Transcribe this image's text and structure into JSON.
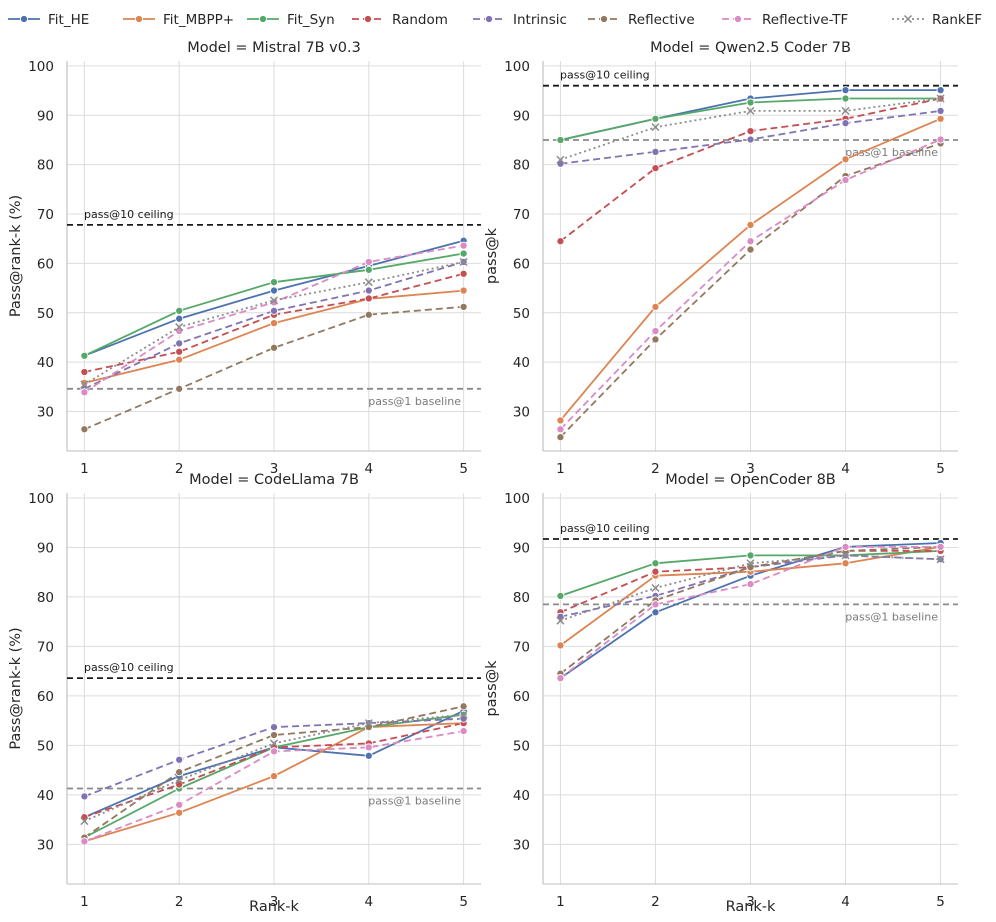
{
  "legend": {
    "position": "top",
    "items": [
      {
        "label": "Fit_HE",
        "color": "#4c72b0",
        "dash": "solid",
        "marker": "circle"
      },
      {
        "label": "Fit_MBPP+",
        "color": "#dd8452",
        "dash": "solid",
        "marker": "circle"
      },
      {
        "label": "Fit_Syn",
        "color": "#55a868",
        "dash": "solid",
        "marker": "circle"
      },
      {
        "label": "Random",
        "color": "#c44e52",
        "dash": "dashed",
        "marker": "circle"
      },
      {
        "label": "Intrinsic",
        "color": "#8172b3",
        "dash": "dashed",
        "marker": "circle"
      },
      {
        "label": "Reflective",
        "color": "#937860",
        "dash": "dashed",
        "marker": "circle"
      },
      {
        "label": "Reflective-TF",
        "color": "#da8bc3",
        "dash": "dashed",
        "marker": "circle"
      },
      {
        "label": "RankEF",
        "color": "#8c8c8c",
        "dash": "dotted",
        "marker": "x"
      }
    ]
  },
  "chart_data": [
    {
      "type": "line",
      "title": "Model = Mistral 7B v0.3",
      "xlabel": "",
      "ylabel": "Pass@rank-k (%)",
      "x": [
        1,
        2,
        3,
        4,
        5
      ],
      "xticks": [
        "1",
        "2",
        "3",
        "4",
        "5"
      ],
      "ylim": [
        22,
        101
      ],
      "yticks": [
        30,
        40,
        50,
        60,
        70,
        80,
        90,
        100
      ],
      "grid": true,
      "ceiling": {
        "value": 67.8,
        "label": "pass@10 ceiling"
      },
      "baseline": {
        "value": 34.6,
        "label": "pass@1 baseline"
      },
      "series": [
        {
          "name": "Fit_HE",
          "values": [
            41.3,
            48.8,
            54.5,
            59.5,
            64.6
          ]
        },
        {
          "name": "Fit_MBPP+",
          "values": [
            35.8,
            40.5,
            47.9,
            52.8,
            54.5
          ]
        },
        {
          "name": "Fit_Syn",
          "values": [
            41.3,
            50.4,
            56.2,
            58.7,
            62.0
          ]
        },
        {
          "name": "Random",
          "values": [
            38.0,
            42.1,
            49.6,
            52.9,
            57.9
          ]
        },
        {
          "name": "Intrinsic",
          "values": [
            34.6,
            43.8,
            50.4,
            54.5,
            60.3
          ]
        },
        {
          "name": "Reflective",
          "values": [
            26.4,
            34.6,
            42.9,
            49.6,
            51.2
          ]
        },
        {
          "name": "Reflective-TF",
          "values": [
            33.9,
            46.3,
            52.1,
            60.3,
            63.6
          ]
        },
        {
          "name": "RankEF",
          "values": [
            35.5,
            47.1,
            52.5,
            56.2,
            60.3
          ]
        }
      ]
    },
    {
      "type": "line",
      "title": "Model = Qwen2.5 Coder 7B",
      "xlabel": "",
      "ylabel": "pass@k",
      "x": [
        1,
        2,
        3,
        4,
        5
      ],
      "xticks": [
        "1",
        "2",
        "3",
        "4",
        "5"
      ],
      "ylim": [
        22,
        101
      ],
      "yticks": [
        30,
        40,
        50,
        60,
        70,
        80,
        90,
        100
      ],
      "grid": true,
      "ceiling": {
        "value": 96.0,
        "label": "pass@10 ceiling"
      },
      "baseline": {
        "value": 85.0,
        "label": "pass@1 baseline"
      },
      "series": [
        {
          "name": "Fit_HE",
          "values": [
            85.0,
            89.3,
            93.4,
            95.1,
            95.1
          ]
        },
        {
          "name": "Fit_MBPP+",
          "values": [
            28.2,
            51.2,
            67.8,
            81.1,
            89.3
          ]
        },
        {
          "name": "Fit_Syn",
          "values": [
            85.0,
            89.3,
            92.6,
            93.4,
            93.4
          ]
        },
        {
          "name": "Random",
          "values": [
            64.5,
            79.3,
            86.8,
            89.3,
            93.4
          ]
        },
        {
          "name": "Intrinsic",
          "values": [
            80.2,
            82.6,
            85.1,
            88.4,
            90.9
          ]
        },
        {
          "name": "Reflective",
          "values": [
            24.8,
            44.6,
            62.8,
            77.7,
            84.3
          ]
        },
        {
          "name": "Reflective-TF",
          "values": [
            26.4,
            46.3,
            64.5,
            76.9,
            85.1
          ]
        },
        {
          "name": "RankEF",
          "values": [
            81.0,
            87.6,
            90.9,
            90.9,
            93.4
          ]
        }
      ]
    },
    {
      "type": "line",
      "title": "Model = CodeLlama 7B",
      "xlabel": "Rank-k",
      "ylabel": "Pass@rank-k (%)",
      "x": [
        1,
        2,
        3,
        4,
        5
      ],
      "xticks": [
        "1",
        "2",
        "3",
        "4",
        "5"
      ],
      "ylim": [
        22,
        101
      ],
      "yticks": [
        30,
        40,
        50,
        60,
        70,
        80,
        90,
        100
      ],
      "grid": true,
      "ceiling": {
        "value": 63.6,
        "label": "pass@10 ceiling"
      },
      "baseline": {
        "value": 41.3,
        "label": "pass@1 baseline"
      },
      "series": [
        {
          "name": "Fit_HE",
          "values": [
            35.5,
            43.8,
            49.6,
            47.9,
            57.0
          ]
        },
        {
          "name": "Fit_MBPP+",
          "values": [
            30.6,
            36.4,
            43.8,
            53.7,
            54.5
          ]
        },
        {
          "name": "Fit_Syn",
          "values": [
            31.4,
            41.3,
            49.6,
            53.7,
            56.2
          ]
        },
        {
          "name": "Random",
          "values": [
            35.5,
            42.1,
            49.6,
            50.4,
            54.5
          ]
        },
        {
          "name": "Intrinsic",
          "values": [
            39.7,
            47.1,
            53.7,
            54.5,
            55.4
          ]
        },
        {
          "name": "Reflective",
          "values": [
            31.4,
            44.6,
            52.1,
            53.7,
            57.9
          ]
        },
        {
          "name": "Reflective-TF",
          "values": [
            30.6,
            38.0,
            48.8,
            49.6,
            52.9
          ]
        },
        {
          "name": "RankEF",
          "values": [
            34.7,
            43.0,
            50.4,
            54.5,
            56.2
          ]
        }
      ]
    },
    {
      "type": "line",
      "title": "Model = OpenCoder 8B",
      "xlabel": "Rank-k",
      "ylabel": "pass@k",
      "x": [
        1,
        2,
        3,
        4,
        5
      ],
      "xticks": [
        "1",
        "2",
        "3",
        "4",
        "5"
      ],
      "ylim": [
        22,
        101
      ],
      "yticks": [
        30,
        40,
        50,
        60,
        70,
        80,
        90,
        100
      ],
      "grid": true,
      "ceiling": {
        "value": 91.7,
        "label": "pass@10 ceiling"
      },
      "baseline": {
        "value": 78.5,
        "label": "pass@1 baseline"
      },
      "series": [
        {
          "name": "Fit_HE",
          "values": [
            63.6,
            76.9,
            84.3,
            90.1,
            90.9
          ]
        },
        {
          "name": "Fit_MBPP+",
          "values": [
            70.2,
            84.3,
            85.1,
            86.8,
            90.1
          ]
        },
        {
          "name": "Fit_Syn",
          "values": [
            80.2,
            86.8,
            88.4,
            88.4,
            89.3
          ]
        },
        {
          "name": "Random",
          "values": [
            76.9,
            85.1,
            86.0,
            89.3,
            89.3
          ]
        },
        {
          "name": "Intrinsic",
          "values": [
            76.0,
            80.2,
            86.0,
            88.4,
            87.6
          ]
        },
        {
          "name": "Reflective",
          "values": [
            64.5,
            79.3,
            86.0,
            89.3,
            90.1
          ]
        },
        {
          "name": "Reflective-TF",
          "values": [
            63.6,
            78.5,
            82.6,
            90.1,
            90.1
          ]
        },
        {
          "name": "RankEF",
          "values": [
            75.2,
            81.8,
            86.8,
            88.4,
            87.6
          ]
        }
      ]
    }
  ]
}
